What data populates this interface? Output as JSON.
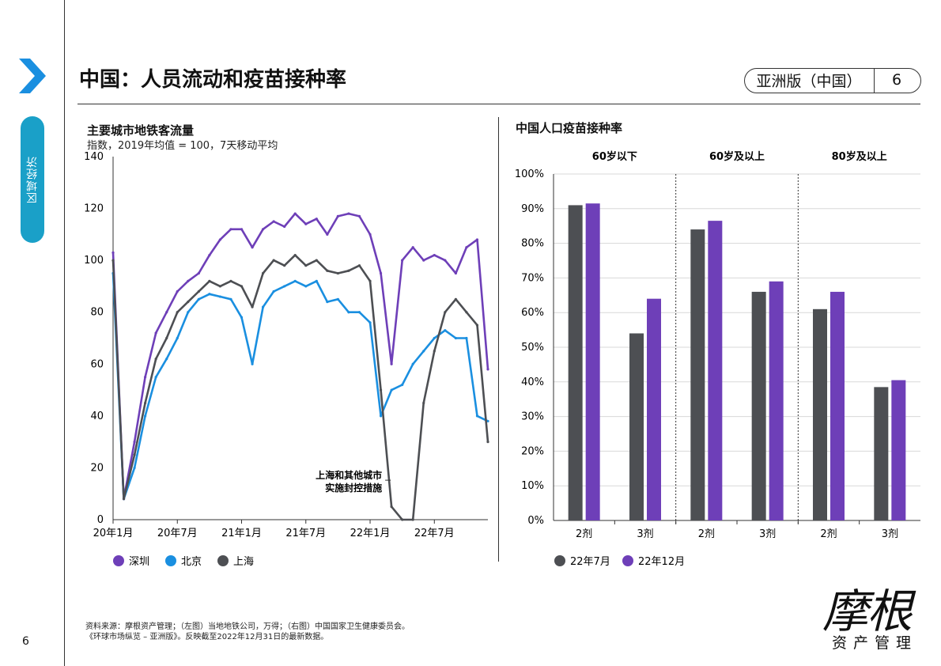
{
  "page": {
    "title": "中国：人员流动和疫苗接种率",
    "edition": "亚洲版（中国）",
    "page_number": "6",
    "side_tab": "区域经济",
    "left_page_number": "6",
    "footer_line1": "资料来源：摩根资产管理；（左图）当地地铁公司，万得；（右图）中国国家卫生健康委员会。",
    "footer_line2": "《环球市场纵览 – 亚洲版》。反映截至2022年12月31日的最新数据。",
    "logo_main": "摩根",
    "logo_sub": "资产管理",
    "colors": {
      "accent": "#1aa0c8",
      "arrow": "#1a8fe0",
      "purple": "#6e3fb8",
      "blue": "#1a8fe0",
      "dark": "#4d4f53"
    }
  },
  "chart_data": [
    {
      "type": "line",
      "title": "主要城市地铁客流量",
      "subtitle": "指数，2019年均值 = 100，7天移动平均",
      "xlabel": "",
      "ylabel": "",
      "ylim": [
        0,
        140
      ],
      "yticks": [
        "0",
        "20",
        "40",
        "60",
        "80",
        "100",
        "120",
        "140"
      ],
      "xticks": [
        "20年1月",
        "20年7月",
        "21年1月",
        "21年7月",
        "22年1月",
        "22年7月"
      ],
      "annotation_line1": "上海和其他城市",
      "annotation_line2": "实施封控措施",
      "legend_position": "bottom",
      "x": [
        "2020-01",
        "2020-02",
        "2020-03",
        "2020-04",
        "2020-05",
        "2020-06",
        "2020-07",
        "2020-08",
        "2020-09",
        "2020-10",
        "2020-11",
        "2020-12",
        "2021-01",
        "2021-02",
        "2021-03",
        "2021-04",
        "2021-05",
        "2021-06",
        "2021-07",
        "2021-08",
        "2021-09",
        "2021-10",
        "2021-11",
        "2021-12",
        "2022-01",
        "2022-02",
        "2022-03",
        "2022-04",
        "2022-05",
        "2022-06",
        "2022-07",
        "2022-08",
        "2022-09",
        "2022-10",
        "2022-11",
        "2022-12"
      ],
      "series": [
        {
          "name": "深圳",
          "color": "#6e3fb8",
          "values": [
            103,
            8,
            30,
            55,
            72,
            80,
            88,
            92,
            95,
            102,
            108,
            112,
            112,
            105,
            112,
            115,
            113,
            118,
            114,
            116,
            110,
            117,
            118,
            117,
            110,
            95,
            60,
            100,
            105,
            100,
            102,
            100,
            95,
            105,
            108,
            58
          ]
        },
        {
          "name": "北京",
          "color": "#1a8fe0",
          "values": [
            95,
            8,
            20,
            40,
            55,
            62,
            70,
            80,
            85,
            87,
            86,
            85,
            78,
            60,
            82,
            88,
            90,
            92,
            90,
            92,
            84,
            85,
            80,
            80,
            76,
            40,
            50,
            52,
            60,
            65,
            70,
            73,
            70,
            70,
            40,
            38
          ]
        },
        {
          "name": "上海",
          "color": "#4d4f53",
          "values": [
            100,
            8,
            25,
            45,
            62,
            70,
            80,
            84,
            88,
            92,
            90,
            92,
            90,
            82,
            95,
            100,
            98,
            102,
            98,
            100,
            96,
            95,
            96,
            98,
            92,
            50,
            5,
            0,
            0,
            45,
            65,
            80,
            85,
            80,
            75,
            30
          ]
        }
      ]
    },
    {
      "type": "bar",
      "title": "中国人口疫苗接种率",
      "ylim": [
        0,
        1
      ],
      "yticks": [
        "0%",
        "10%",
        "20%",
        "30%",
        "40%",
        "50%",
        "60%",
        "70%",
        "80%",
        "90%",
        "100%"
      ],
      "groups": [
        "60岁以下",
        "60岁及以上",
        "80岁及以上"
      ],
      "categories": [
        "2剂",
        "3剂",
        "2剂",
        "3剂",
        "2剂",
        "3剂"
      ],
      "legend_position": "bottom",
      "series": [
        {
          "name": "22年7月",
          "color": "#4d4f53",
          "values": [
            0.91,
            0.54,
            0.84,
            0.66,
            0.61,
            0.385
          ]
        },
        {
          "name": "22年12月",
          "color": "#6e3fb8",
          "values": [
            0.915,
            0.64,
            0.865,
            0.69,
            0.66,
            0.405
          ]
        }
      ]
    }
  ]
}
